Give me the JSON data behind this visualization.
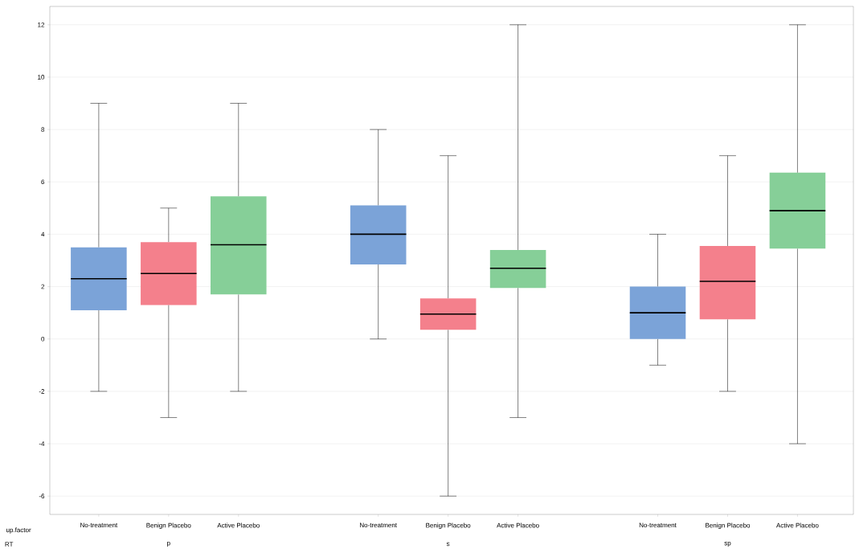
{
  "chart_data": {
    "type": "box",
    "categories": [
      "No-treatment",
      "Benign Placebo",
      "Active Placebo",
      null,
      "No-treatment",
      "Benign Placebo",
      "Active Placebo",
      null,
      "No-treatment",
      "Benign Placebo",
      "Active Placebo"
    ],
    "boxes": [
      {
        "low": -2,
        "q1": 1.1,
        "median": 2.3,
        "q3": 3.5,
        "high": 9
      },
      {
        "low": -3,
        "q1": 1.3,
        "median": 2.5,
        "q3": 3.7,
        "high": 5
      },
      {
        "low": -2,
        "q1": 1.7,
        "median": 3.6,
        "q3": 5.45,
        "high": 9
      },
      null,
      {
        "low": 0,
        "q1": 2.85,
        "median": 4.0,
        "q3": 5.1,
        "high": 8
      },
      {
        "low": -6,
        "q1": 0.35,
        "median": 0.95,
        "q3": 1.55,
        "high": 7
      },
      {
        "low": -3,
        "q1": 1.95,
        "median": 2.7,
        "q3": 3.4,
        "high": 12
      },
      null,
      {
        "low": -1,
        "q1": 0,
        "median": 1.0,
        "q3": 2.0,
        "high": 4
      },
      {
        "low": -2,
        "q1": 0.75,
        "median": 2.2,
        "q3": 3.55,
        "high": 7
      },
      {
        "low": -4,
        "q1": 3.45,
        "median": 4.9,
        "q3": 6.35,
        "high": 12
      }
    ],
    "colors": [
      "#7ba3d8",
      "#f4808c",
      "#86cf98",
      null,
      "#7ba3d8",
      "#f4808c",
      "#86cf98",
      null,
      "#7ba3d8",
      "#f4808c",
      "#86cf98"
    ],
    "ylim": [
      -6.7,
      12.7
    ],
    "yticks": [
      -6,
      -4,
      -2,
      0,
      2,
      4,
      6,
      8,
      10,
      12
    ],
    "grid": "y",
    "annotations": [
      "up.factor",
      "RT",
      "p",
      "s",
      "sp"
    ]
  }
}
